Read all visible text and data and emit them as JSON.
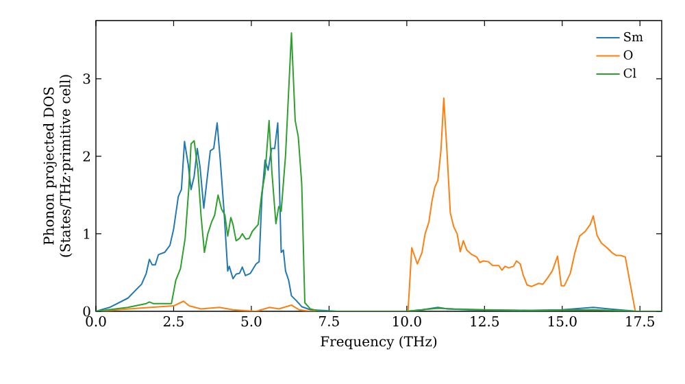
{
  "chart_data": {
    "type": "line",
    "xlabel": "Frequency (THz)",
    "ylabel": "Phonon projected DOS (States/THz·primitive cell)",
    "xlim": [
      0,
      18.2
    ],
    "ylim": [
      0,
      3.75
    ],
    "xticks": [
      {
        "value": 0,
        "label": "0.0"
      },
      {
        "value": 2.5,
        "label": "2.5"
      },
      {
        "value": 5,
        "label": "5.0"
      },
      {
        "value": 7.5,
        "label": "7.5"
      },
      {
        "value": 10,
        "label": "10.0"
      },
      {
        "value": 12.5,
        "label": "12.5"
      },
      {
        "value": 15,
        "label": "15.0"
      },
      {
        "value": 17.5,
        "label": "17.5"
      }
    ],
    "yticks": [
      0,
      1,
      2,
      3
    ],
    "grid": false,
    "legend": "top right",
    "marker": "none",
    "line_style": "solid",
    "series": [
      {
        "name": "Sm",
        "color": "#1f77b4",
        "x": [
          0,
          0.44,
          1.03,
          1.47,
          1.62,
          1.72,
          1.81,
          1.91,
          2.01,
          2.21,
          2.38,
          2.5,
          2.65,
          2.75,
          2.85,
          2.97,
          3.06,
          3.16,
          3.26,
          3.35,
          3.47,
          3.56,
          3.68,
          3.79,
          3.9,
          4.0,
          4.12,
          4.24,
          4.29,
          4.41,
          4.51,
          4.62,
          4.71,
          4.81,
          4.97,
          5.15,
          5.25,
          5.34,
          5.44,
          5.54,
          5.65,
          5.75,
          5.85,
          5.96,
          6.03,
          6.1,
          6.2,
          6.29,
          6.44,
          6.62,
          6.9,
          7.8,
          10,
          10.5,
          11,
          11.3,
          12,
          14,
          15,
          16,
          16.5,
          17.4,
          18.2
        ],
        "values": [
          0,
          0.05,
          0.17,
          0.35,
          0.49,
          0.67,
          0.6,
          0.6,
          0.73,
          0.76,
          0.85,
          1.06,
          1.48,
          1.57,
          2.19,
          1.89,
          1.57,
          1.74,
          2.1,
          1.86,
          1.33,
          1.65,
          2.07,
          2.1,
          2.43,
          1.95,
          1.3,
          0.52,
          0.58,
          0.42,
          0.48,
          0.49,
          0.57,
          0.46,
          0.49,
          0.61,
          0.64,
          1.48,
          1.95,
          1.82,
          2.1,
          2.1,
          2.43,
          0.76,
          0.79,
          0.52,
          0.4,
          0.2,
          0.14,
          0.06,
          0.02,
          0,
          0,
          0.02,
          0.05,
          0.03,
          0.02,
          0.01,
          0.02,
          0.05,
          0.03,
          0,
          0
        ]
      },
      {
        "name": "O",
        "color": "#ff7f0e",
        "x": [
          0,
          1.76,
          2.5,
          2.82,
          3.0,
          3.38,
          3.97,
          4.41,
          5.15,
          5.59,
          5.88,
          6.29,
          6.53,
          6.9,
          10.04,
          10.16,
          10.34,
          10.49,
          10.59,
          10.71,
          10.81,
          10.9,
          11.0,
          11.1,
          11.19,
          11.29,
          11.4,
          11.51,
          11.62,
          11.72,
          11.82,
          11.93,
          12.1,
          12.25,
          12.35,
          12.47,
          12.62,
          12.76,
          12.96,
          13.06,
          13.16,
          13.28,
          13.43,
          13.53,
          13.65,
          13.75,
          13.87,
          14.01,
          14.24,
          14.38,
          14.53,
          14.68,
          14.85,
          14.97,
          15.07,
          15.26,
          15.41,
          15.56,
          15.74,
          15.9,
          16.0,
          16.12,
          16.26,
          16.44,
          16.59,
          16.74,
          16.88,
          17.03,
          17.18,
          17.35,
          18.2
        ],
        "values": [
          0,
          0.05,
          0.07,
          0.13,
          0.07,
          0.03,
          0.05,
          0.02,
          0,
          0.05,
          0.03,
          0.08,
          0.02,
          0,
          0,
          0.82,
          0.61,
          0.76,
          1.0,
          1.15,
          1.42,
          1.6,
          1.69,
          2.08,
          2.75,
          2.08,
          1.27,
          1.09,
          1.0,
          0.77,
          0.91,
          0.79,
          0.73,
          0.7,
          0.63,
          0.65,
          0.64,
          0.59,
          0.59,
          0.53,
          0.58,
          0.56,
          0.58,
          0.65,
          0.61,
          0.46,
          0.34,
          0.32,
          0.36,
          0.35,
          0.43,
          0.52,
          0.71,
          0.33,
          0.33,
          0.49,
          0.76,
          0.97,
          1.03,
          1.12,
          1.23,
          0.98,
          0.88,
          0.82,
          0.76,
          0.72,
          0.72,
          0.7,
          0.37,
          0,
          0
        ]
      },
      {
        "name": "Cl",
        "color": "#2ca02c",
        "x": [
          0,
          1.03,
          1.62,
          1.72,
          1.84,
          2.13,
          2.43,
          2.57,
          2.72,
          2.87,
          2.99,
          3.06,
          3.16,
          3.28,
          3.38,
          3.49,
          3.6,
          3.72,
          3.82,
          3.93,
          4.04,
          4.15,
          4.24,
          4.34,
          4.41,
          4.51,
          4.62,
          4.71,
          4.82,
          4.93,
          5.03,
          5.22,
          5.34,
          5.44,
          5.57,
          5.66,
          5.79,
          5.88,
          5.96,
          6.1,
          6.29,
          6.41,
          6.51,
          6.62,
          6.72,
          6.9,
          7.2,
          10,
          11,
          11.5,
          12.5,
          14,
          16,
          17.4,
          18.2
        ],
        "values": [
          0,
          0.05,
          0.1,
          0.12,
          0.1,
          0.1,
          0.1,
          0.4,
          0.55,
          0.94,
          1.6,
          2.16,
          2.2,
          1.83,
          1.24,
          0.76,
          1.0,
          1.15,
          1.24,
          1.5,
          1.32,
          1.24,
          0.97,
          1.21,
          1.12,
          0.91,
          0.94,
          1.0,
          0.93,
          0.94,
          1.03,
          1.12,
          1.54,
          1.77,
          2.46,
          1.8,
          1.13,
          1.35,
          1.29,
          2.01,
          3.59,
          2.46,
          2.25,
          1.65,
          0.11,
          0.03,
          0,
          0,
          0.04,
          0.03,
          0.02,
          0.01,
          0.02,
          0,
          0
        ]
      }
    ]
  }
}
